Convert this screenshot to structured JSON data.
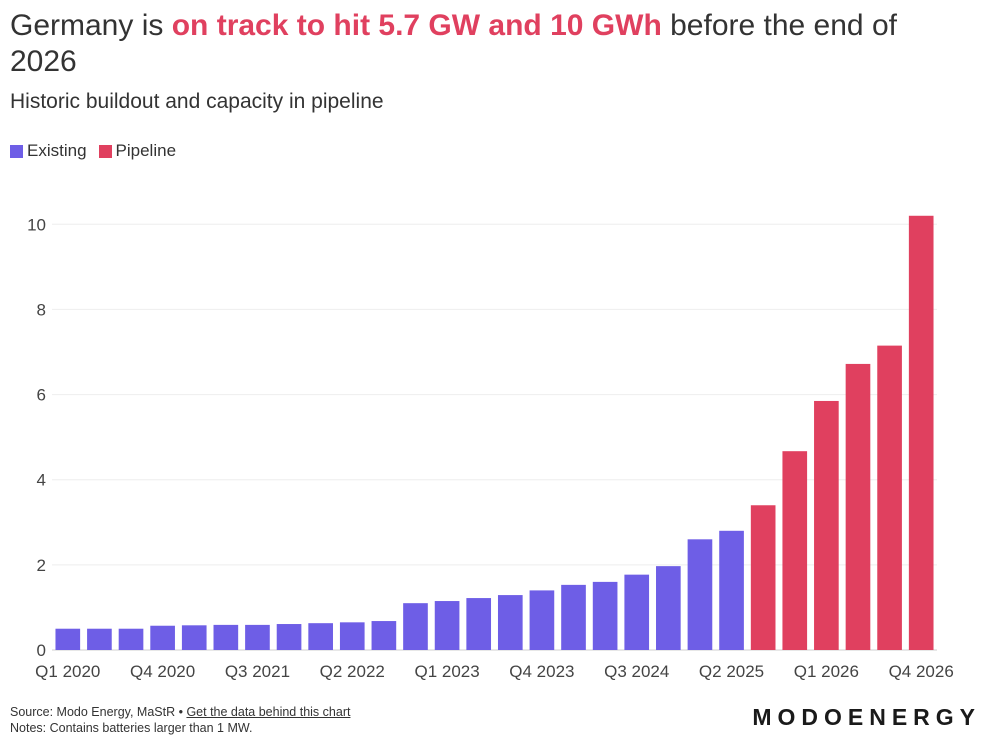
{
  "title": {
    "prefix": "Germany is ",
    "highlight": "on track to hit 5.7 GW and 10 GWh",
    "suffix": " before the end of 2026"
  },
  "subtitle": "Historic buildout and capacity in pipeline",
  "legend": [
    {
      "label": "Existing",
      "color": "#6e5ee6"
    },
    {
      "label": "Pipeline",
      "color": "#e0405f"
    }
  ],
  "footer": {
    "source": "Source: Modo Energy, MaStR • ",
    "link": "Get the data behind this chart",
    "notes": "Notes: Contains batteries larger than 1 MW."
  },
  "logo": "MODOENERGY",
  "chart_data": {
    "type": "bar",
    "categories": [
      "Q1 2020",
      "Q2 2020",
      "Q3 2020",
      "Q4 2020",
      "Q1 2021",
      "Q2 2021",
      "Q3 2021",
      "Q4 2021",
      "Q1 2022",
      "Q2 2022",
      "Q3 2022",
      "Q4 2022",
      "Q1 2023",
      "Q2 2023",
      "Q3 2023",
      "Q4 2023",
      "Q1 2024",
      "Q2 2024",
      "Q3 2024",
      "Q4 2024",
      "Q1 2025",
      "Q2 2025",
      "Q3 2025",
      "Q4 2025",
      "Q1 2026",
      "Q2 2026",
      "Q3 2026",
      "Q4 2026"
    ],
    "tick_labels": [
      "Q1 2020",
      "Q4 2020",
      "Q3 2021",
      "Q2 2022",
      "Q1 2023",
      "Q4 2023",
      "Q3 2024",
      "Q2 2025",
      "Q1 2026",
      "Q4 2026"
    ],
    "series": [
      {
        "name": "Existing",
        "color": "#6e5ee6",
        "values": [
          0.5,
          0.5,
          0.5,
          0.57,
          0.58,
          0.59,
          0.59,
          0.61,
          0.63,
          0.65,
          0.68,
          1.1,
          1.15,
          1.22,
          1.29,
          1.4,
          1.53,
          1.6,
          1.77,
          1.97,
          2.6,
          2.8,
          null,
          null,
          null,
          null,
          null,
          null
        ]
      },
      {
        "name": "Pipeline",
        "color": "#e0405f",
        "values": [
          null,
          null,
          null,
          null,
          null,
          null,
          null,
          null,
          null,
          null,
          null,
          null,
          null,
          null,
          null,
          null,
          null,
          null,
          null,
          null,
          null,
          null,
          3.4,
          4.67,
          5.85,
          6.72,
          7.15,
          10.2
        ]
      }
    ],
    "yticks": [
      0,
      2,
      4,
      6,
      8,
      10
    ],
    "ylim": [
      0,
      10.5
    ],
    "xlabel": "",
    "ylabel": "",
    "grid": true
  }
}
